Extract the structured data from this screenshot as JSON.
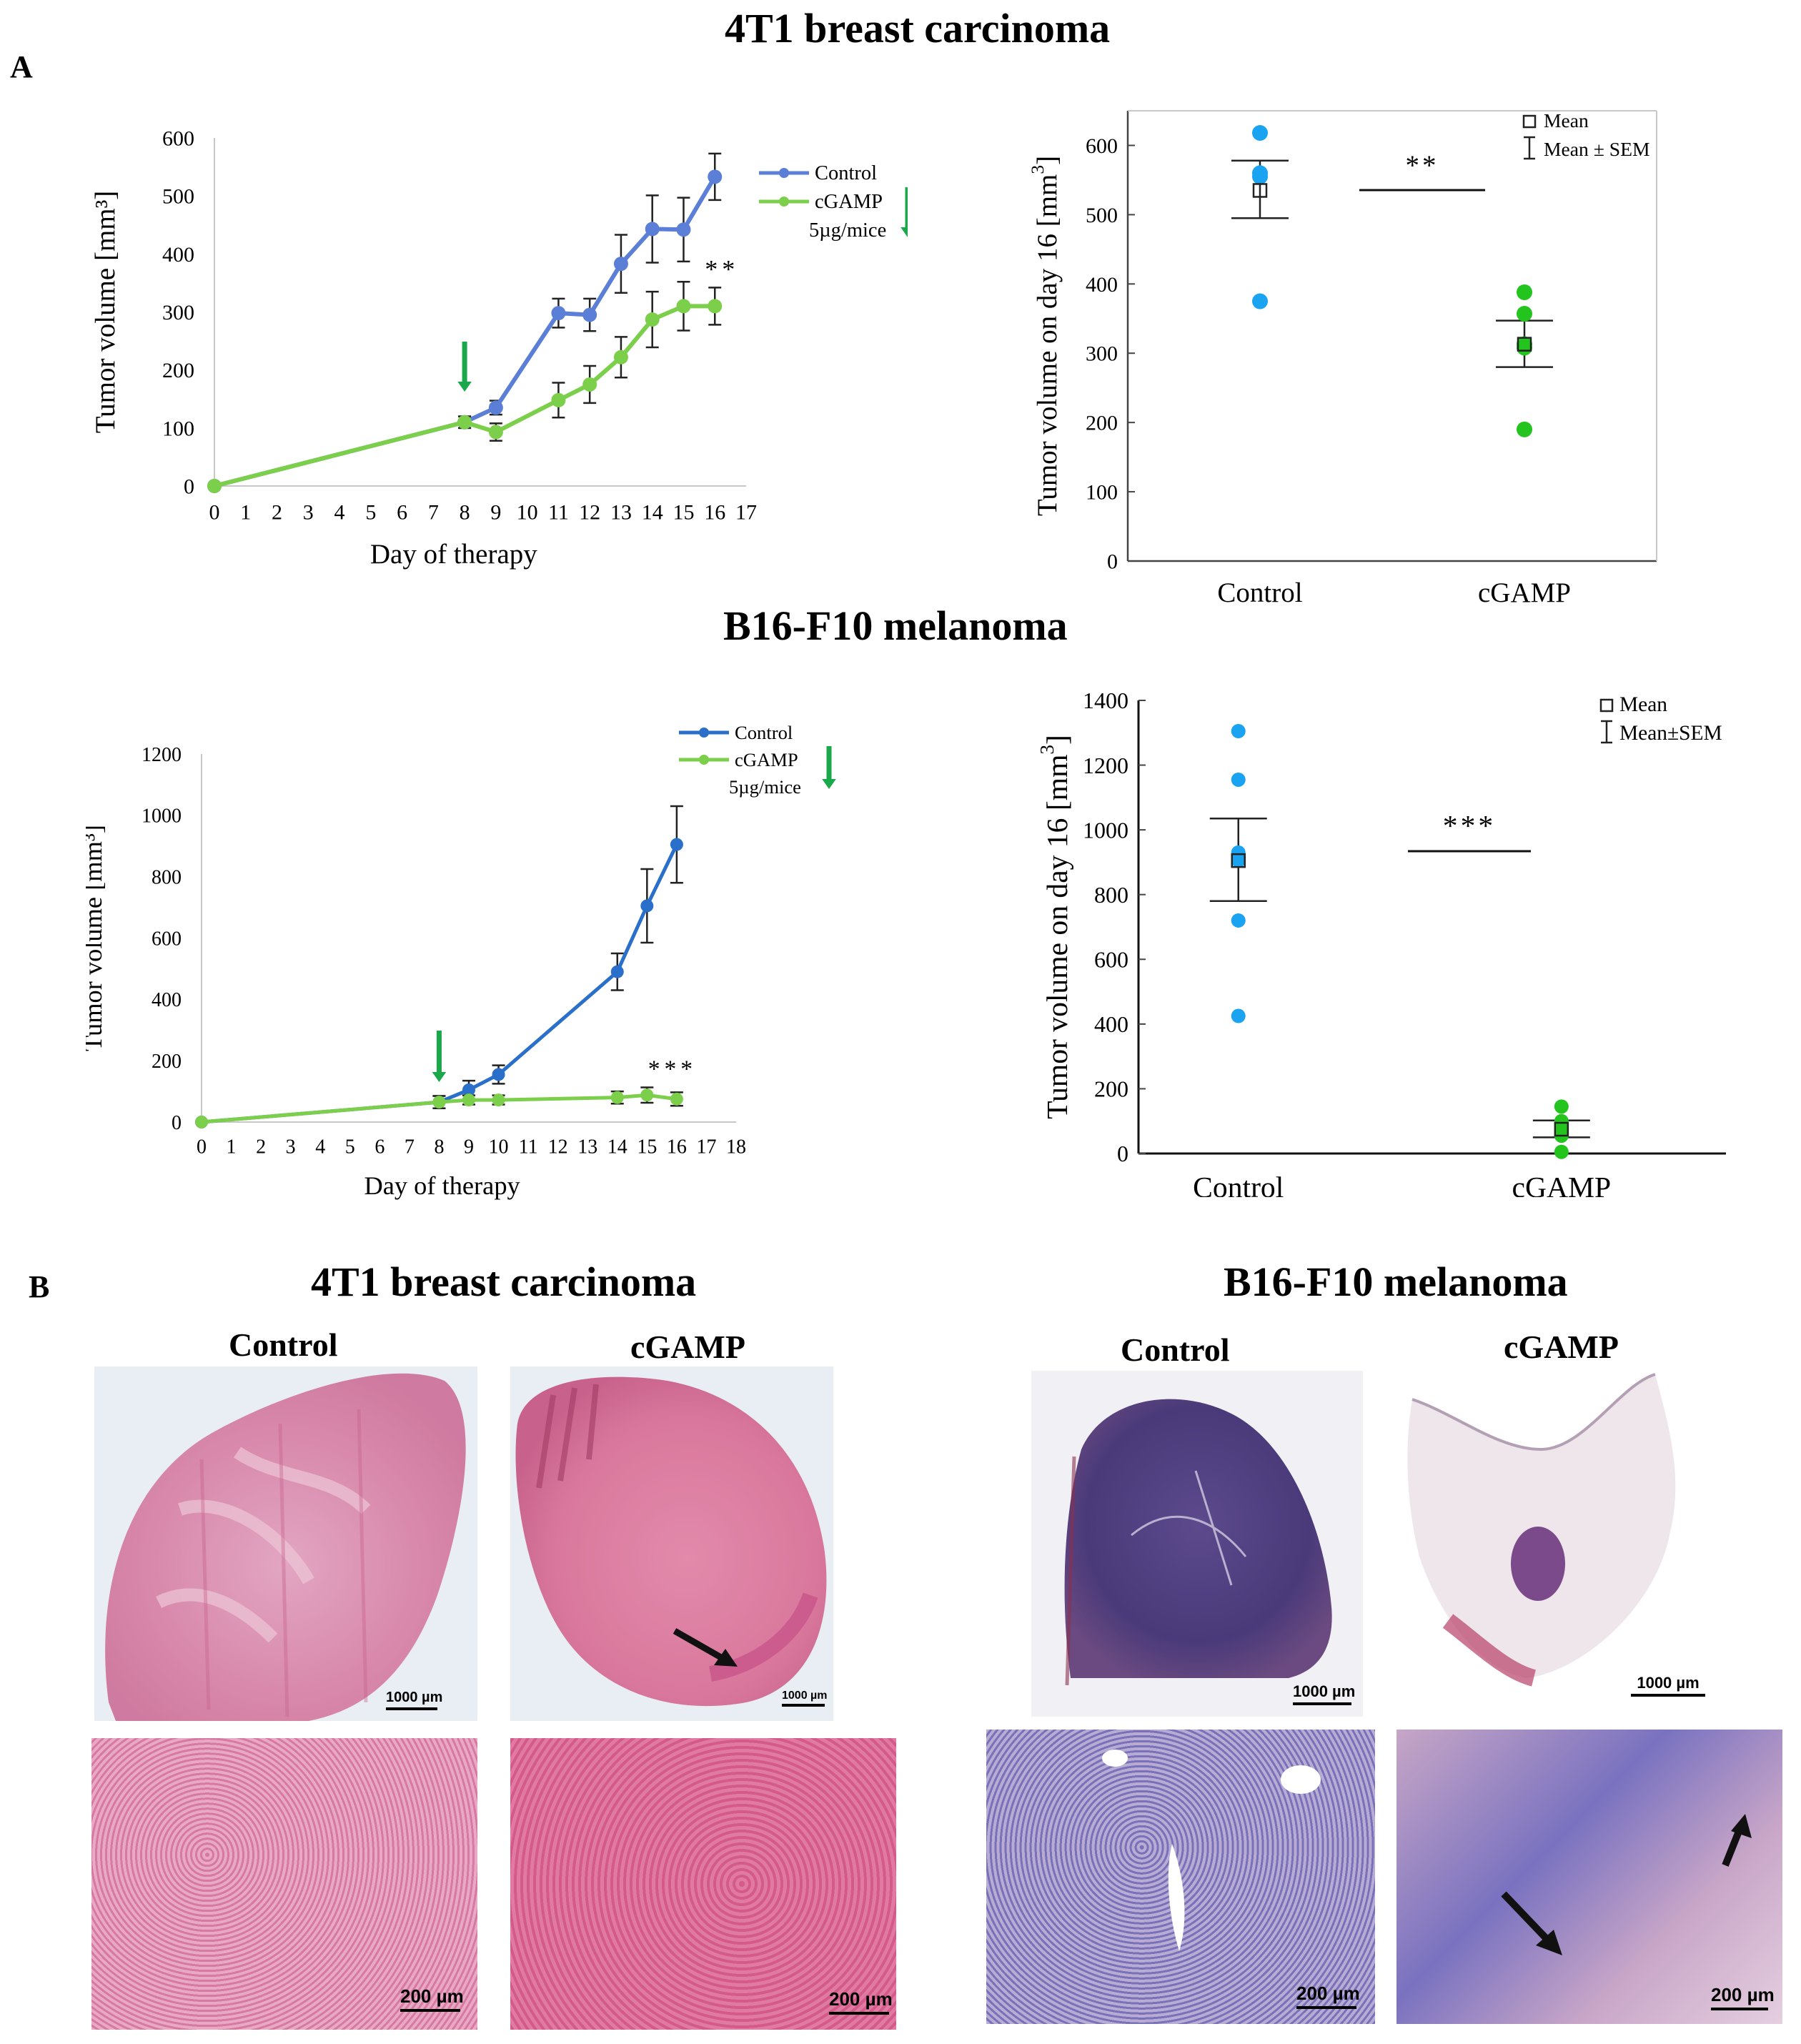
{
  "figure": {
    "panel_a_label": "A",
    "panel_b_label": "B",
    "title_4t1": "4T1 breast carcinoma",
    "title_b16": "B16-F10 melanoma",
    "title_4t1_b": "4T1 breast carcinoma",
    "title_b16_b": "B16-F10 melanoma"
  },
  "colors": {
    "control_line": "#5b7fd6",
    "control_line_b16": "#2a6fc9",
    "cgamp_line": "#7ccf4a",
    "control_dot": "#19a3f0",
    "cgamp_dot": "#22c41d",
    "arrow_green": "#1aa84a"
  },
  "chart_data": [
    {
      "id": "line-4t1",
      "type": "line",
      "title": "",
      "xlabel": "Day of therapy",
      "ylabel": "Tumor volume [mm³]",
      "xlim": [
        0,
        17
      ],
      "ylim": [
        0,
        600
      ],
      "xticks": [
        0,
        1,
        2,
        3,
        4,
        5,
        6,
        7,
        8,
        9,
        10,
        11,
        12,
        13,
        14,
        15,
        16,
        17
      ],
      "yticks": [
        0,
        100,
        200,
        300,
        400,
        500,
        600
      ],
      "treatment_day": 8,
      "significance": "**",
      "significance_day": 16,
      "legend": [
        "Control",
        "cGAMP",
        "5µg/mice"
      ],
      "series": [
        {
          "name": "Control",
          "x": [
            0,
            8,
            9,
            11,
            12,
            13,
            14,
            15,
            16
          ],
          "values": [
            0,
            110,
            135,
            298,
            295,
            383,
            443,
            442,
            533
          ],
          "errors": [
            0,
            10,
            12,
            25,
            28,
            50,
            58,
            55,
            40
          ]
        },
        {
          "name": "cGAMP",
          "x": [
            0,
            8,
            9,
            11,
            12,
            13,
            14,
            15,
            16
          ],
          "values": [
            0,
            110,
            93,
            148,
            175,
            222,
            287,
            310,
            310
          ],
          "errors": [
            0,
            10,
            15,
            30,
            32,
            35,
            48,
            42,
            32
          ]
        }
      ]
    },
    {
      "id": "dot-4t1",
      "type": "scatter",
      "ylabel": "Tumor volume on day 16 [mm",
      "ylabel_sup": "3",
      "ylabel_end": "]",
      "ylim": [
        0,
        650
      ],
      "yticks": [
        0,
        100,
        200,
        300,
        400,
        500,
        600
      ],
      "categories": [
        "Control",
        "cGAMP"
      ],
      "significance": "**",
      "legend_mean": "Mean",
      "legend_sem": "Mean ± SEM",
      "groups": [
        {
          "name": "Control",
          "points": [
            618,
            560,
            555,
            375
          ],
          "mean": 535,
          "sem_low": 495,
          "sem_high": 578
        },
        {
          "name": "cGAMP",
          "points": [
            388,
            357,
            313,
            308,
            190
          ],
          "mean": 313,
          "sem_low": 280,
          "sem_high": 347
        }
      ]
    },
    {
      "id": "line-b16",
      "type": "line",
      "title": "",
      "xlabel": "Day of therapy",
      "ylabel": "Tumor volume [mm³]",
      "xlim": [
        0,
        18
      ],
      "ylim": [
        0,
        1200
      ],
      "xticks": [
        0,
        1,
        2,
        3,
        4,
        5,
        6,
        7,
        8,
        9,
        10,
        11,
        12,
        13,
        14,
        15,
        16,
        17,
        18
      ],
      "yticks": [
        0,
        200,
        400,
        600,
        800,
        1000,
        1200
      ],
      "treatment_day": 8,
      "significance": "***",
      "significance_day": 16,
      "legend": [
        "Control",
        "cGAMP",
        "5µg/mice"
      ],
      "series": [
        {
          "name": "Control",
          "x": [
            0,
            8,
            9,
            10,
            14,
            15,
            16
          ],
          "values": [
            0,
            65,
            105,
            155,
            490,
            705,
            905
          ],
          "errors": [
            0,
            20,
            30,
            30,
            60,
            120,
            125
          ]
        },
        {
          "name": "cGAMP",
          "x": [
            0,
            8,
            9,
            10,
            14,
            15,
            16
          ],
          "values": [
            0,
            65,
            72,
            72,
            80,
            88,
            75
          ],
          "errors": [
            0,
            20,
            15,
            15,
            20,
            25,
            22
          ]
        }
      ]
    },
    {
      "id": "dot-b16",
      "type": "scatter",
      "ylabel": "Tumor volume on day 16 [mm",
      "ylabel_sup": "3",
      "ylabel_end": "]",
      "ylim": [
        0,
        1400
      ],
      "yticks": [
        0,
        200,
        400,
        600,
        800,
        1000,
        1200,
        1400
      ],
      "categories": [
        "Control",
        "cGAMP"
      ],
      "significance": "***",
      "legend_mean": "Mean",
      "legend_sem": "Mean±SEM",
      "groups": [
        {
          "name": "Control",
          "points": [
            1305,
            1155,
            930,
            905,
            720,
            425
          ],
          "mean": 905,
          "sem_low": 780,
          "sem_high": 1035
        },
        {
          "name": "cGAMP",
          "points": [
            145,
            100,
            85,
            70,
            55,
            5
          ],
          "mean": 75,
          "sem_low": 50,
          "sem_high": 102
        }
      ]
    }
  ],
  "histology": {
    "label_control_4t1": "Control",
    "label_cgamp_4t1": "cGAMP",
    "label_control_b16": "Control",
    "label_cgamp_b16": "cGAMP",
    "scale_1000": "1000 µm",
    "scale_200": "200 µm"
  }
}
